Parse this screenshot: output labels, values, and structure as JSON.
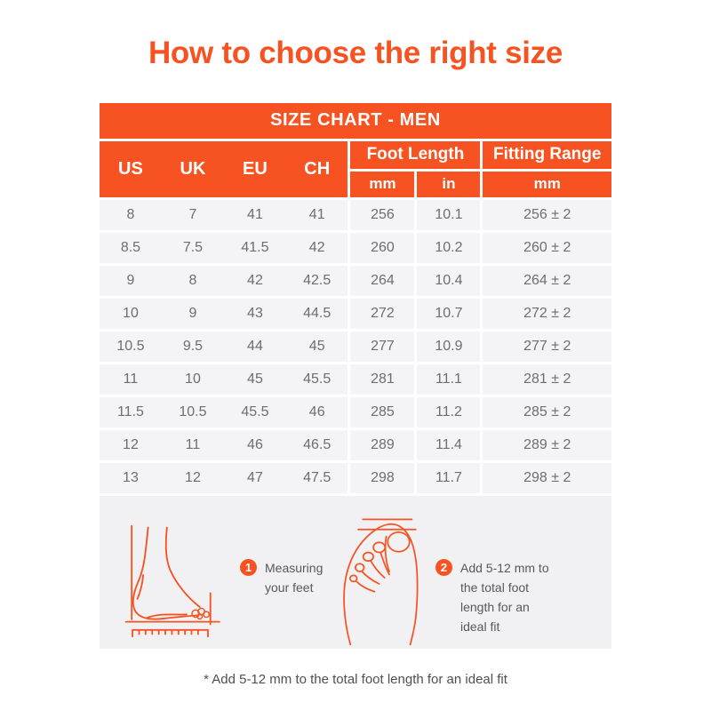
{
  "page": {
    "title": "How to choose the right size",
    "footnote": "* Add 5-12 mm to the total foot length for an ideal fit"
  },
  "colors": {
    "orange": "#F75322",
    "row_bg": "#F4F4F6",
    "block_bg": "#F1F1F3",
    "cell_text": "#6D6D72",
    "step_text": "#58585D",
    "note_text": "#4F4F54",
    "header_text": "#FFFFFF"
  },
  "table": {
    "title": "SIZE CHART - MEN",
    "size_columns": [
      "US",
      "UK",
      "EU",
      "CH"
    ],
    "foot_length_label": "Foot Length",
    "fitting_range_label": "Fitting Range",
    "units": {
      "mm": "mm",
      "in": "in",
      "fitting_mm": "mm"
    },
    "column_keys": [
      "us",
      "uk",
      "eu",
      "ch",
      "mm",
      "in",
      "fit"
    ],
    "rows": [
      {
        "us": "8",
        "uk": "7",
        "eu": "41",
        "ch": "41",
        "mm": "256",
        "in": "10.1",
        "fit": "256 ± 2"
      },
      {
        "us": "8.5",
        "uk": "7.5",
        "eu": "41.5",
        "ch": "42",
        "mm": "260",
        "in": "10.2",
        "fit": "260 ± 2"
      },
      {
        "us": "9",
        "uk": "8",
        "eu": "42",
        "ch": "42.5",
        "mm": "264",
        "in": "10.4",
        "fit": "264 ± 2"
      },
      {
        "us": "10",
        "uk": "9",
        "eu": "43",
        "ch": "44.5",
        "mm": "272",
        "in": "10.7",
        "fit": "272 ± 2"
      },
      {
        "us": "10.5",
        "uk": "9.5",
        "eu": "44",
        "ch": "45",
        "mm": "277",
        "in": "10.9",
        "fit": "277 ± 2"
      },
      {
        "us": "11",
        "uk": "10",
        "eu": "45",
        "ch": "45.5",
        "mm": "281",
        "in": "11.1",
        "fit": "281 ± 2"
      },
      {
        "us": "11.5",
        "uk": "10.5",
        "eu": "45.5",
        "ch": "46",
        "mm": "285",
        "in": "11.2",
        "fit": "285 ± 2"
      },
      {
        "us": "12",
        "uk": "11",
        "eu": "46",
        "ch": "46.5",
        "mm": "289",
        "in": "11.4",
        "fit": "289 ± 2"
      },
      {
        "us": "13",
        "uk": "12",
        "eu": "47",
        "ch": "47.5",
        "mm": "298",
        "in": "11.7",
        "fit": "298 ± 2"
      }
    ]
  },
  "steps": [
    {
      "number": "1",
      "text": "Measuring your feet"
    },
    {
      "number": "2",
      "text": "Add 5-12 mm to the total foot length for an ideal fit"
    }
  ]
}
